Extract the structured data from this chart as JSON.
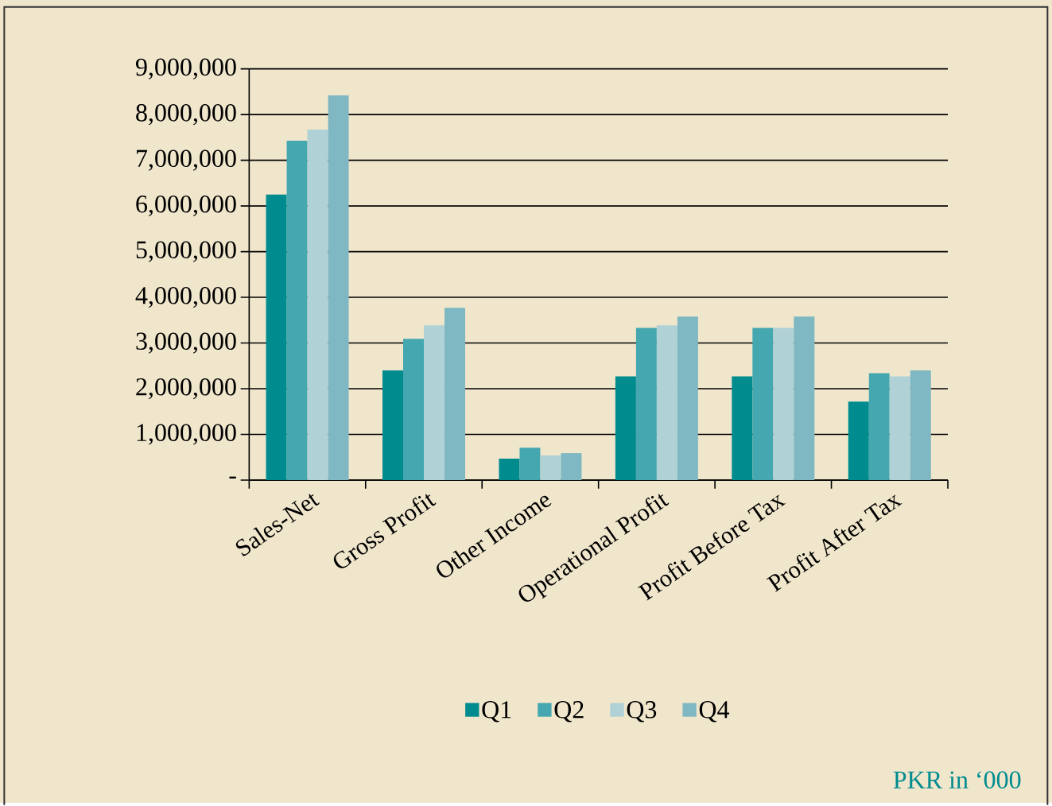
{
  "chart_data": {
    "type": "bar",
    "categories": [
      "Sales-Net",
      "Gross Profit",
      "Other Income",
      "Operational Profit",
      "Profit Before Tax",
      "Profit After Tax"
    ],
    "series": [
      {
        "name": "Q1",
        "color": "#008b8f",
        "values": [
          6250000,
          2400000,
          470000,
          2270000,
          2270000,
          1720000
        ]
      },
      {
        "name": "Q2",
        "color": "#45a7b0",
        "values": [
          7430000,
          3090000,
          710000,
          3330000,
          3330000,
          2340000
        ]
      },
      {
        "name": "Q3",
        "color": "#b0d2d6",
        "values": [
          7670000,
          3390000,
          540000,
          3390000,
          3330000,
          2270000
        ]
      },
      {
        "name": "Q4",
        "color": "#7fb8c2",
        "values": [
          8420000,
          3770000,
          590000,
          3580000,
          3580000,
          2400000
        ]
      }
    ],
    "ylim": [
      0,
      9000000
    ],
    "yticks": [
      {
        "value": 0,
        "label": "-"
      },
      {
        "value": 1000000,
        "label": "1,000,000"
      },
      {
        "value": 2000000,
        "label": "2,000,000"
      },
      {
        "value": 3000000,
        "label": "3,000,000"
      },
      {
        "value": 4000000,
        "label": "4,000,000"
      },
      {
        "value": 5000000,
        "label": "5,000,000"
      },
      {
        "value": 6000000,
        "label": "6,000,000"
      },
      {
        "value": 7000000,
        "label": "7,000,000"
      },
      {
        "value": 8000000,
        "label": "8,000,000"
      },
      {
        "value": 9000000,
        "label": "9,000,000"
      }
    ],
    "grid": "y",
    "legend": "bottom",
    "annotations": [
      "PKR in ‘000"
    ]
  }
}
